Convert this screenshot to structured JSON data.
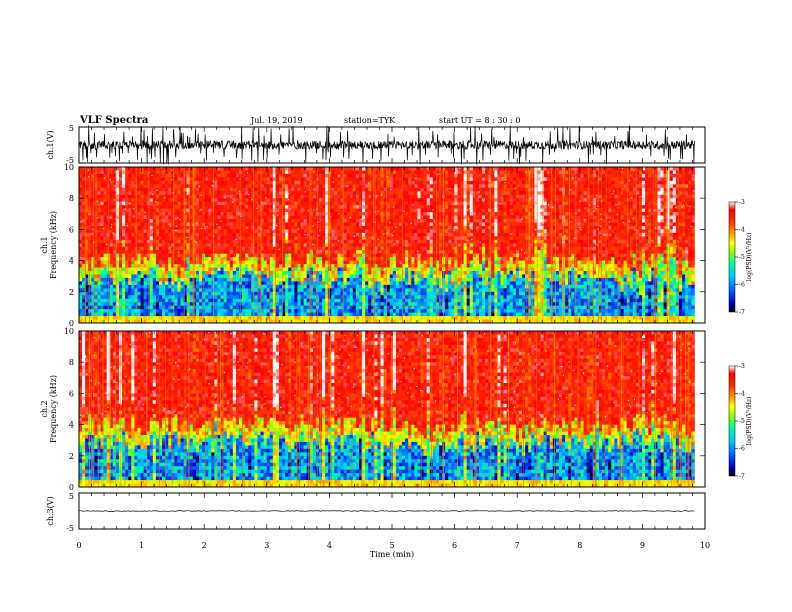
{
  "header": {
    "title": "VLF Spectra",
    "date": "Jul. 19, 2019",
    "station": "station=TYK",
    "start_time": "start UT =  8 : 30 : 0"
  },
  "chart_data": [
    {
      "type": "line",
      "panel": "ch1-waveform",
      "ylabel": "ch.1(V)",
      "ylim": [
        -5,
        5
      ],
      "yticks": [
        "5",
        "-5"
      ],
      "xlim": [
        0,
        10
      ],
      "description_values": {
        "baseline": 0,
        "noise_amplitude": 1.2,
        "spike_amplitude": 5
      }
    },
    {
      "type": "heatmap",
      "panel": "ch1-spectrogram",
      "ylabel_top": "ch.1",
      "ylabel": "Frequency (kHz)",
      "ylim": [
        0,
        10
      ],
      "yticks": [
        "0",
        "2",
        "4",
        "6",
        "8",
        "10"
      ],
      "xlim": [
        0,
        10
      ],
      "colorbar": {
        "label": "log(PSD)(V²/Hz)",
        "range": [
          -7,
          -3
        ],
        "ticks": [
          "-3",
          "-4",
          "-5",
          "-6",
          "-7"
        ]
      }
    },
    {
      "type": "heatmap",
      "panel": "ch2-spectrogram",
      "ylabel_top": "ch.2",
      "ylabel": "Frequency (kHz)",
      "ylim": [
        0,
        10
      ],
      "yticks": [
        "0",
        "2",
        "4",
        "6",
        "8",
        "10"
      ],
      "xlim": [
        0,
        10
      ],
      "colorbar": {
        "label": "log(PSD)(V²/Hz)",
        "range": [
          -7,
          -3
        ],
        "ticks": [
          "-3",
          "-4",
          "-5",
          "-6",
          "-7"
        ]
      }
    },
    {
      "type": "line",
      "panel": "ch3-waveform",
      "ylabel": "ch.3(V)",
      "ylim": [
        -5,
        5
      ],
      "yticks": [
        "5",
        "-5"
      ],
      "xlim": [
        0,
        10
      ],
      "description_values": {
        "baseline": 0,
        "noise_amplitude": 0.1
      }
    }
  ],
  "x_axis": {
    "label": "Time (min)",
    "ticks": [
      "0",
      "1",
      "2",
      "3",
      "4",
      "5",
      "6",
      "7",
      "8",
      "9",
      "10"
    ],
    "data_end": 9.83
  },
  "colors": {
    "axis": "#000000",
    "trace": "#000000",
    "colormap": [
      "#000000",
      "#0000c8",
      "#0064ff",
      "#00c8ff",
      "#00ff96",
      "#96ff00",
      "#ffff00",
      "#ff9600",
      "#ff3200",
      "#ff0000",
      "#ffffff"
    ]
  }
}
